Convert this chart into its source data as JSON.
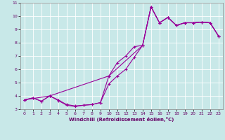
{
  "xlabel": "Windchill (Refroidissement éolien,°C)",
  "bg_color": "#c8e8e8",
  "grid_color": "#ffffff",
  "line_color": "#990099",
  "xlim": [
    -0.5,
    23.5
  ],
  "ylim": [
    3,
    11
  ],
  "xticks": [
    0,
    1,
    2,
    3,
    4,
    5,
    6,
    7,
    8,
    9,
    10,
    11,
    12,
    13,
    14,
    15,
    16,
    17,
    18,
    19,
    20,
    21,
    22,
    23
  ],
  "yticks": [
    3,
    4,
    5,
    6,
    7,
    8,
    9,
    10,
    11
  ],
  "line1_x": [
    0,
    1,
    2,
    3,
    4,
    5,
    6,
    7,
    8,
    9,
    10,
    11,
    12,
    13,
    14,
    15,
    16,
    17,
    18,
    19,
    20,
    21,
    22,
    23
  ],
  "line1_y": [
    3.7,
    3.85,
    3.6,
    4.0,
    3.65,
    3.3,
    3.2,
    3.3,
    3.35,
    3.5,
    5.5,
    6.5,
    7.0,
    7.7,
    7.8,
    10.7,
    9.5,
    9.9,
    9.3,
    9.5,
    9.5,
    9.55,
    9.5,
    8.5
  ],
  "line2_x": [
    0,
    1,
    2,
    3,
    4,
    5,
    6,
    7,
    8,
    9,
    10,
    11,
    12,
    13,
    14,
    15,
    16,
    17,
    18,
    19,
    20,
    21,
    22,
    23
  ],
  "line2_y": [
    3.7,
    3.85,
    3.6,
    4.0,
    3.7,
    3.35,
    3.25,
    3.3,
    3.35,
    3.5,
    4.9,
    5.5,
    6.0,
    6.9,
    7.8,
    10.7,
    9.5,
    9.9,
    9.3,
    9.5,
    9.5,
    9.55,
    9.5,
    8.5
  ],
  "line3_x": [
    0,
    3,
    10,
    14,
    15,
    16,
    17,
    18,
    19,
    20,
    21,
    22,
    23
  ],
  "line3_y": [
    3.7,
    4.0,
    5.5,
    7.8,
    10.7,
    9.5,
    9.9,
    9.3,
    9.5,
    9.5,
    9.55,
    9.5,
    8.5
  ]
}
